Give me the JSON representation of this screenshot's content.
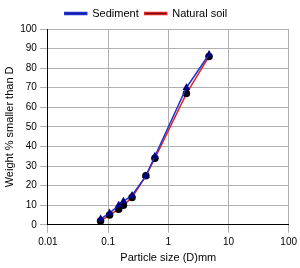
{
  "chart_data": {
    "type": "line",
    "x_label": "Particle size (D)mm",
    "y_label": "Weight % smaller than D",
    "x": [
      0.075,
      0.106,
      0.15,
      0.18,
      0.25,
      0.425,
      0.6,
      2.0,
      4.75
    ],
    "series": [
      {
        "name": "Sediment",
        "color": "#2233cc",
        "marker": "triangle",
        "line_style": "solid",
        "values": [
          3,
          6,
          10,
          12,
          15,
          25,
          35,
          70,
          87
        ]
      },
      {
        "name": "Natural soil",
        "color": "#dd2222",
        "marker": "circle",
        "line_style": "solid",
        "values": [
          2,
          5,
          8,
          10,
          14,
          25,
          34,
          67,
          86
        ]
      }
    ],
    "log": "x",
    "xlim": [
      0.01,
      100
    ],
    "xticks": [
      0.01,
      0.1,
      1,
      10,
      100
    ],
    "ylim": [
      0,
      100
    ],
    "yticks": [
      0,
      10,
      20,
      30,
      40,
      50,
      60,
      70,
      80,
      90,
      100
    ],
    "grid": true,
    "legend": "top"
  }
}
